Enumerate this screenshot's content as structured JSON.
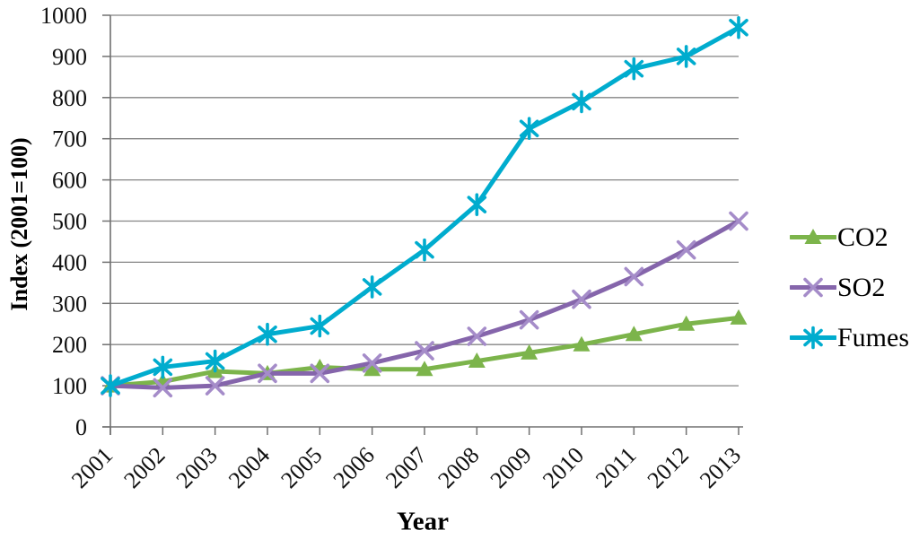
{
  "chart_data": {
    "type": "line",
    "title": "",
    "xlabel": "Year",
    "ylabel": "Index (2001=100)",
    "x": [
      "2001",
      "2002",
      "2003",
      "2004",
      "2005",
      "2006",
      "2007",
      "2008",
      "2009",
      "2010",
      "2011",
      "2012",
      "2013"
    ],
    "ylim": [
      0,
      1000
    ],
    "yticks": [
      0,
      100,
      200,
      300,
      400,
      500,
      600,
      700,
      800,
      900,
      1000
    ],
    "grid": "horizontal",
    "legend_position": "right",
    "series": [
      {
        "name": "CO2",
        "color": "#7CB44B",
        "marker": "triangle",
        "marker_color": "#7CB44B",
        "values": [
          100,
          110,
          135,
          130,
          145,
          140,
          140,
          160,
          180,
          200,
          225,
          250,
          265
        ]
      },
      {
        "name": "SO2",
        "color": "#8565AB",
        "marker": "x",
        "marker_color": "#A58CC9",
        "values": [
          100,
          95,
          100,
          130,
          130,
          155,
          185,
          220,
          260,
          310,
          365,
          430,
          500
        ]
      },
      {
        "name": "Fumes",
        "color": "#00ACCE",
        "marker": "asterisk",
        "marker_color": "#00ACCE",
        "values": [
          100,
          145,
          160,
          225,
          245,
          340,
          430,
          540,
          725,
          790,
          870,
          900,
          970
        ]
      }
    ]
  },
  "styles": {
    "grid_color": "#848484",
    "axis_color": "#707070",
    "text_color": "#111111"
  }
}
